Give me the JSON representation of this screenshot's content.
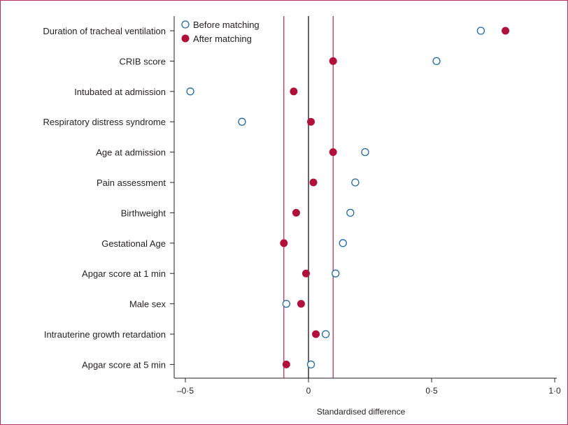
{
  "chart_data": {
    "type": "scatter",
    "categories": [
      "Duration of tracheal ventilation",
      "CRIB score",
      "Intubated at admission",
      "Respiratory distress syndrome",
      "Age at admission",
      "Pain assessment",
      "Birthweight",
      "Gestational Age",
      "Apgar score at 1 min",
      "Male sex",
      "Intrauterine growth retardation",
      "Apgar score at 5 min"
    ],
    "series": [
      {
        "name": "Before matching",
        "marker": "open-circle",
        "color": "#1f6aa5",
        "values": [
          0.7,
          0.52,
          -0.48,
          -0.27,
          0.23,
          0.19,
          0.17,
          0.14,
          0.11,
          -0.09,
          0.07,
          0.01
        ]
      },
      {
        "name": "After matching",
        "marker": "filled-circle",
        "color": "#b0103a",
        "values": [
          0.8,
          0.1,
          -0.06,
          0.01,
          0.1,
          0.02,
          -0.05,
          -0.1,
          -0.01,
          -0.03,
          0.03,
          -0.09
        ]
      }
    ],
    "xlabel": "Standardised difference",
    "ylabel": "",
    "xlim": [
      -0.6,
      1.0
    ],
    "xticks": [
      -0.5,
      0,
      0.5,
      1.0
    ],
    "xtick_labels": [
      "–0·5",
      "0",
      "0·5",
      "1·0"
    ],
    "reference_lines": [
      {
        "x": 0,
        "color": "#000000"
      },
      {
        "x": -0.1,
        "color": "#b0103a"
      },
      {
        "x": 0.1,
        "color": "#b0103a"
      }
    ],
    "legend_position": "top-left",
    "grid": false
  }
}
